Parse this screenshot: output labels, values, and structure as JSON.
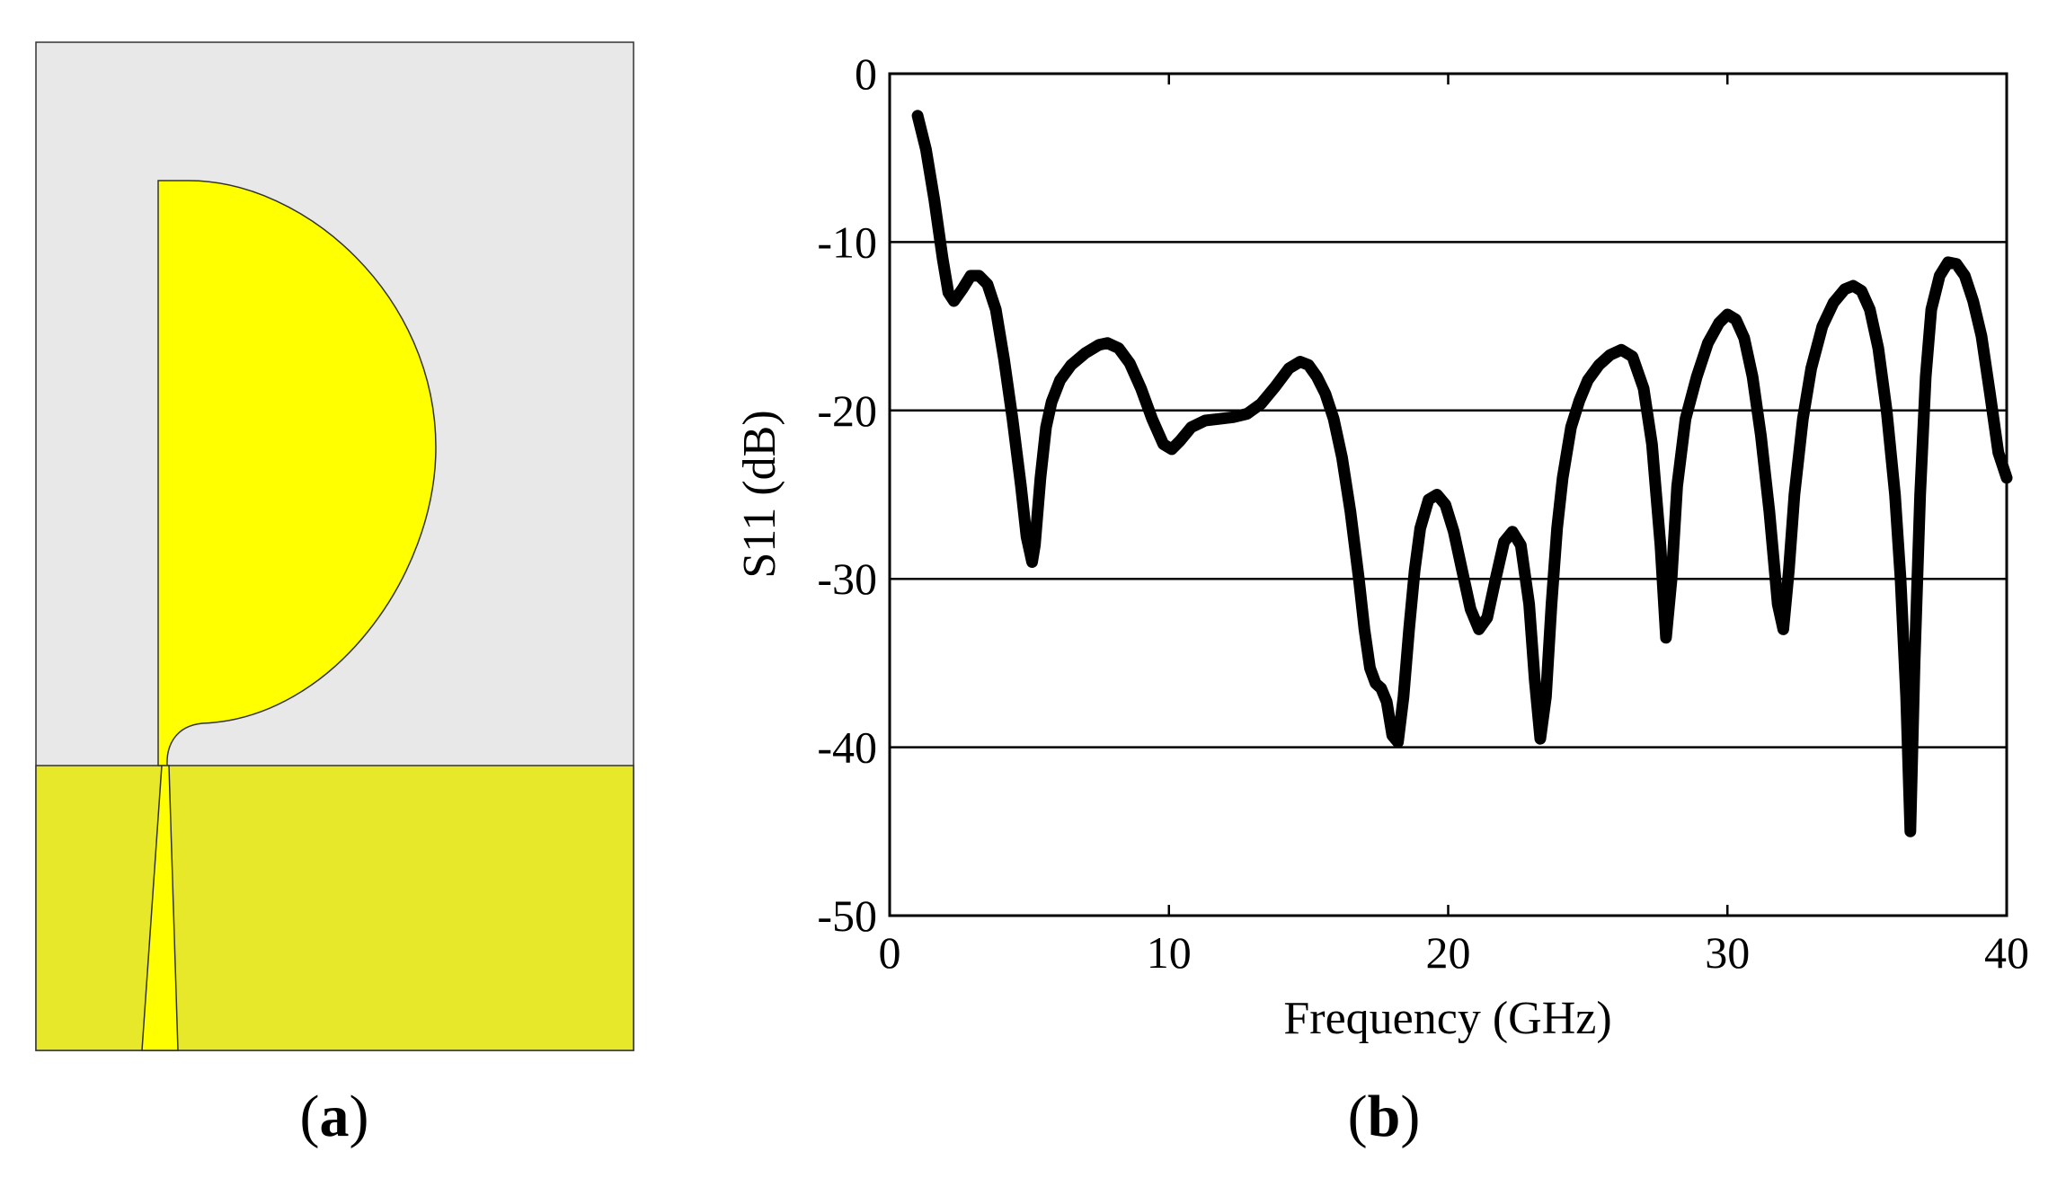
{
  "panel_a": {
    "label_open": "(",
    "label_letter": "a",
    "label_close": ")",
    "colors": {
      "substrate": "#e8e8e8",
      "patch": "#ffff00",
      "ground": "#e8e82a",
      "outline": "#333333"
    }
  },
  "panel_b": {
    "label_open": "(",
    "label_letter": "b",
    "label_close": ")"
  },
  "chart_data": {
    "type": "line",
    "title": "",
    "xlabel": "Frequency (GHz)",
    "ylabel": "S11 (dB)",
    "xlim": [
      0,
      40
    ],
    "ylim": [
      -50,
      0
    ],
    "xticks": [
      0,
      10,
      20,
      30,
      40
    ],
    "yticks": [
      0,
      -10,
      -20,
      -30,
      -40,
      -50
    ],
    "xtick_labels": [
      "0",
      "10",
      "20",
      "30",
      "40"
    ],
    "ytick_labels": [
      "0",
      "-10",
      "-20",
      "-30",
      "-40",
      "-50"
    ],
    "grid": "horizontal",
    "line_color": "#000000",
    "series": [
      {
        "x": [
          1.0,
          1.3,
          1.6,
          1.9,
          2.1,
          2.3,
          2.6,
          2.9,
          3.2,
          3.5,
          3.8,
          4.1,
          4.4,
          4.7,
          4.9,
          5.1,
          5.2,
          5.4,
          5.6,
          5.8,
          6.1,
          6.5,
          7.0,
          7.5,
          7.8,
          8.2,
          8.6,
          9.0,
          9.4,
          9.8,
          10.1,
          10.4,
          10.8,
          11.3,
          11.8,
          12.3,
          12.8,
          13.3,
          13.8,
          14.3,
          14.7,
          15.0,
          15.3,
          15.6,
          15.9,
          16.2,
          16.5,
          16.8,
          17.0,
          17.2,
          17.4,
          17.6,
          17.8,
          18.0,
          18.2,
          18.4,
          18.6,
          18.8,
          19.0,
          19.3,
          19.6,
          19.9,
          20.2,
          20.5,
          20.8,
          21.1,
          21.4,
          21.7,
          22.0,
          22.3,
          22.6,
          22.9,
          23.1,
          23.3,
          23.5,
          23.7,
          23.9,
          24.1,
          24.4,
          24.7,
          25.0,
          25.4,
          25.8,
          26.2,
          26.6,
          27.0,
          27.3,
          27.6,
          27.8,
          28.0,
          28.2,
          28.5,
          28.9,
          29.3,
          29.7,
          30.0,
          30.3,
          30.6,
          30.9,
          31.2,
          31.5,
          31.8,
          32.0,
          32.2,
          32.4,
          32.7,
          33.0,
          33.4,
          33.8,
          34.2,
          34.5,
          34.8,
          35.1,
          35.4,
          35.7,
          36.0,
          36.2,
          36.4,
          36.55,
          36.7,
          36.9,
          37.1,
          37.3,
          37.6,
          37.9,
          38.2,
          38.5,
          38.8,
          39.1,
          39.4,
          39.7,
          40.0
        ],
        "values": [
          -2.5,
          -4.5,
          -7.5,
          -11.0,
          -13.0,
          -13.5,
          -12.8,
          -12.0,
          -12.0,
          -12.5,
          -14.0,
          -17.0,
          -20.5,
          -24.5,
          -27.5,
          -29.0,
          -28.0,
          -24.0,
          -21.0,
          -19.5,
          -18.2,
          -17.3,
          -16.6,
          -16.1,
          -16.0,
          -16.3,
          -17.2,
          -18.7,
          -20.5,
          -22.0,
          -22.3,
          -21.8,
          -21.0,
          -20.6,
          -20.5,
          -20.4,
          -20.2,
          -19.6,
          -18.6,
          -17.5,
          -17.1,
          -17.3,
          -18.0,
          -19.0,
          -20.5,
          -22.8,
          -26.0,
          -30.0,
          -33.0,
          -35.3,
          -36.2,
          -36.5,
          -37.3,
          -39.3,
          -39.7,
          -37.0,
          -33.0,
          -29.5,
          -27.0,
          -25.3,
          -25.0,
          -25.6,
          -27.2,
          -29.5,
          -31.8,
          -33.0,
          -32.3,
          -30.0,
          -27.8,
          -27.2,
          -28.0,
          -31.5,
          -36.0,
          -39.5,
          -37.0,
          -31.5,
          -27.0,
          -24.0,
          -21.0,
          -19.4,
          -18.2,
          -17.3,
          -16.7,
          -16.4,
          -16.8,
          -18.7,
          -22.0,
          -28.0,
          -33.5,
          -30.0,
          -24.5,
          -20.5,
          -18.0,
          -16.0,
          -14.8,
          -14.3,
          -14.6,
          -15.7,
          -18.0,
          -21.5,
          -26.0,
          -31.5,
          -33.0,
          -29.5,
          -25.0,
          -20.5,
          -17.5,
          -15.0,
          -13.6,
          -12.8,
          -12.6,
          -12.9,
          -14.0,
          -16.3,
          -20.0,
          -25.0,
          -30.0,
          -37.0,
          -45.0,
          -35.0,
          -25.0,
          -18.0,
          -14.0,
          -12.0,
          -11.2,
          -11.3,
          -12.0,
          -13.5,
          -15.6,
          -19.0,
          -22.5,
          -24.0
        ]
      }
    ]
  }
}
